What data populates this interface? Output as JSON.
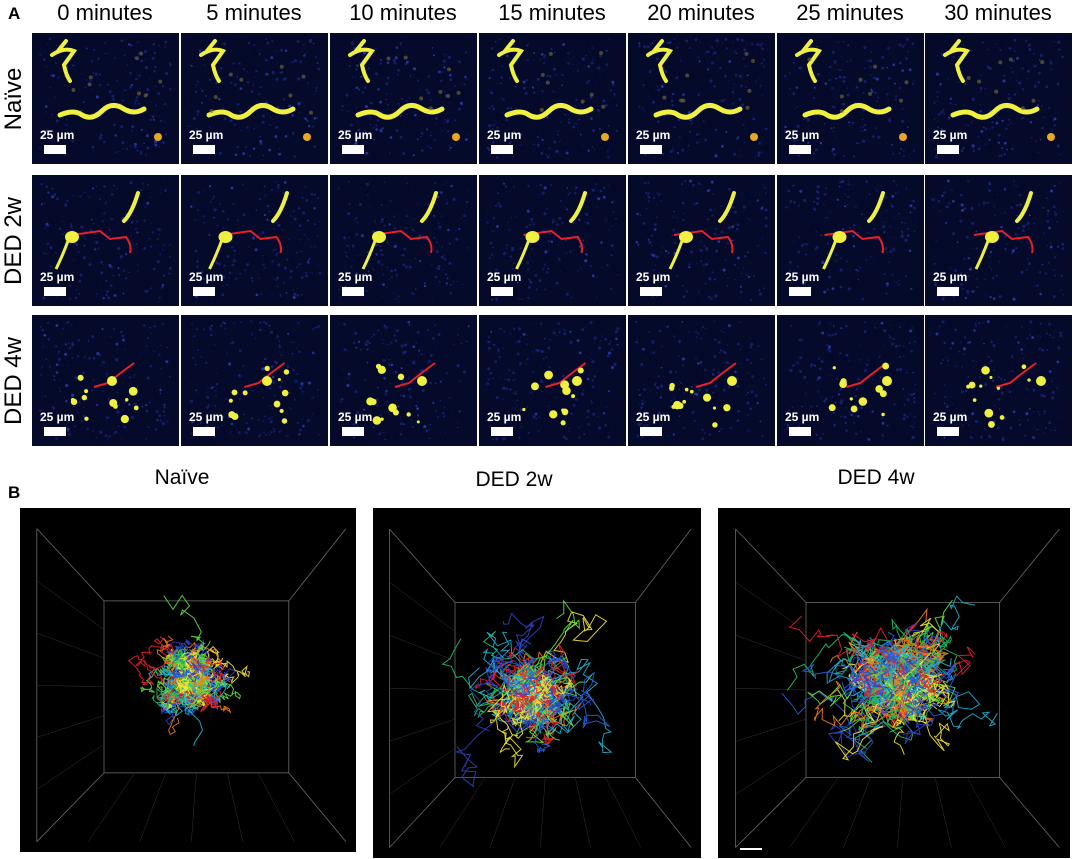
{
  "panel_a": {
    "letter": "A",
    "time_labels": [
      "0 minutes",
      "5 minutes",
      "10 minutes",
      "15 minutes",
      "20 minutes",
      "25 minutes",
      "30 minutes"
    ],
    "rows": [
      {
        "label": "Naïve"
      },
      {
        "label": "DED 2w"
      },
      {
        "label": "DED 4w"
      }
    ],
    "scale_label": "25 µm"
  },
  "panel_b": {
    "letter": "B",
    "titles": [
      "Naïve",
      "DED 2w",
      "DED 4w"
    ]
  },
  "colors": {
    "background_tile": "#050a2a",
    "cell_yellow": "#f0f040",
    "track_red": "#e8202a"
  }
}
